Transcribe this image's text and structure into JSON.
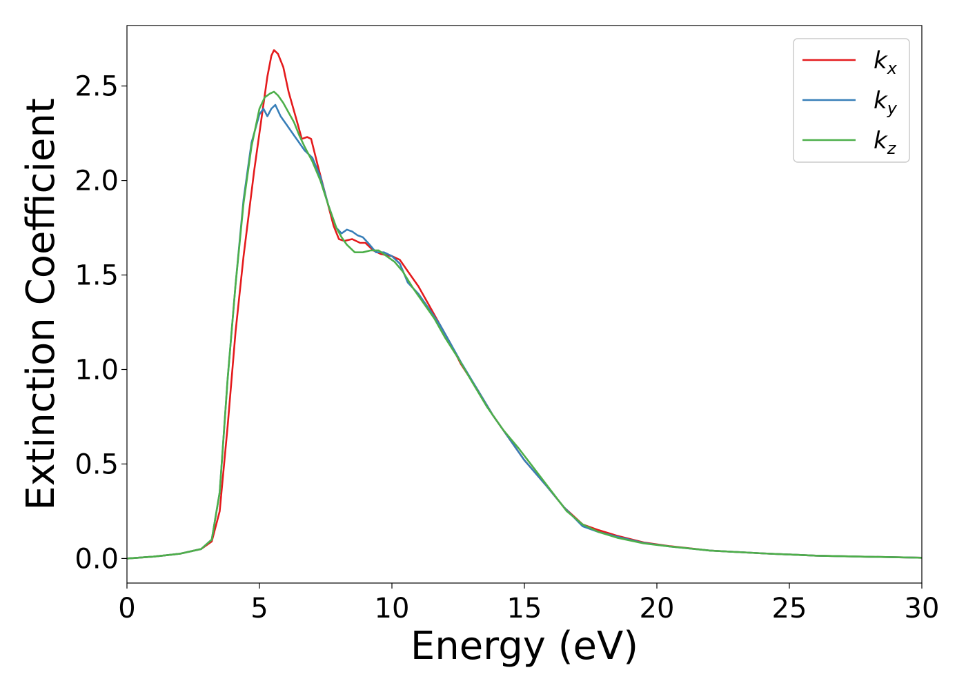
{
  "chart_data": {
    "type": "line",
    "title": "",
    "xlabel": "Energy (eV)",
    "ylabel": "Extinction Coefficient",
    "xlim": [
      0,
      30
    ],
    "ylim": [
      -0.13,
      2.82
    ],
    "xticks": [
      0,
      5,
      10,
      15,
      20,
      25,
      30
    ],
    "xtick_labels": [
      "0",
      "5",
      "10",
      "15",
      "20",
      "25",
      "30"
    ],
    "yticks": [
      0.0,
      0.5,
      1.0,
      1.5,
      2.0,
      2.5
    ],
    "ytick_labels": [
      "0.0",
      "0.5",
      "1.0",
      "1.5",
      "2.0",
      "2.5"
    ],
    "grid": false,
    "legend": {
      "position": "top-right"
    },
    "series": [
      {
        "name": "k_x",
        "label_main": "k",
        "label_sub": "x",
        "color": "#e41a1c",
        "points": [
          [
            0,
            0
          ],
          [
            1,
            0.01
          ],
          [
            2,
            0.025
          ],
          [
            2.8,
            0.05
          ],
          [
            3.2,
            0.09
          ],
          [
            3.5,
            0.25
          ],
          [
            3.8,
            0.7
          ],
          [
            4.1,
            1.2
          ],
          [
            4.4,
            1.6
          ],
          [
            4.8,
            2.05
          ],
          [
            5.1,
            2.35
          ],
          [
            5.3,
            2.55
          ],
          [
            5.45,
            2.66
          ],
          [
            5.55,
            2.69
          ],
          [
            5.7,
            2.67
          ],
          [
            5.9,
            2.6
          ],
          [
            6.1,
            2.47
          ],
          [
            6.4,
            2.32
          ],
          [
            6.6,
            2.22
          ],
          [
            6.8,
            2.23
          ],
          [
            6.95,
            2.22
          ],
          [
            7.2,
            2.08
          ],
          [
            7.5,
            1.92
          ],
          [
            7.8,
            1.76
          ],
          [
            8.0,
            1.69
          ],
          [
            8.2,
            1.68
          ],
          [
            8.5,
            1.69
          ],
          [
            8.8,
            1.67
          ],
          [
            9.0,
            1.67
          ],
          [
            9.3,
            1.63
          ],
          [
            9.6,
            1.61
          ],
          [
            10.0,
            1.6
          ],
          [
            10.3,
            1.58
          ],
          [
            10.6,
            1.52
          ],
          [
            11.0,
            1.44
          ],
          [
            11.4,
            1.34
          ],
          [
            11.8,
            1.24
          ],
          [
            12.2,
            1.14
          ],
          [
            12.6,
            1.03
          ],
          [
            13.2,
            0.9
          ],
          [
            13.8,
            0.76
          ],
          [
            14.5,
            0.62
          ],
          [
            15.0,
            0.52
          ],
          [
            15.8,
            0.39
          ],
          [
            16.5,
            0.27
          ],
          [
            17.2,
            0.18
          ],
          [
            17.8,
            0.15
          ],
          [
            18.5,
            0.12
          ],
          [
            19.5,
            0.085
          ],
          [
            20.5,
            0.065
          ],
          [
            22,
            0.042
          ],
          [
            24,
            0.027
          ],
          [
            26,
            0.015
          ],
          [
            28,
            0.009
          ],
          [
            30,
            0.004
          ]
        ]
      },
      {
        "name": "k_y",
        "label_main": "k",
        "label_sub": "y",
        "color": "#377eb8",
        "points": [
          [
            0,
            0
          ],
          [
            1,
            0.01
          ],
          [
            2,
            0.025
          ],
          [
            2.8,
            0.05
          ],
          [
            3.2,
            0.1
          ],
          [
            3.5,
            0.35
          ],
          [
            3.8,
            0.95
          ],
          [
            4.1,
            1.45
          ],
          [
            4.4,
            1.9
          ],
          [
            4.7,
            2.2
          ],
          [
            5.0,
            2.35
          ],
          [
            5.15,
            2.38
          ],
          [
            5.3,
            2.34
          ],
          [
            5.45,
            2.38
          ],
          [
            5.6,
            2.4
          ],
          [
            5.8,
            2.34
          ],
          [
            6.0,
            2.3
          ],
          [
            6.3,
            2.24
          ],
          [
            6.5,
            2.2
          ],
          [
            6.7,
            2.16
          ],
          [
            7.0,
            2.12
          ],
          [
            7.3,
            2.02
          ],
          [
            7.6,
            1.87
          ],
          [
            7.9,
            1.75
          ],
          [
            8.1,
            1.72
          ],
          [
            8.3,
            1.74
          ],
          [
            8.5,
            1.73
          ],
          [
            8.7,
            1.71
          ],
          [
            8.9,
            1.7
          ],
          [
            9.1,
            1.67
          ],
          [
            9.4,
            1.62
          ],
          [
            9.7,
            1.62
          ],
          [
            10.0,
            1.6
          ],
          [
            10.3,
            1.56
          ],
          [
            10.6,
            1.46
          ],
          [
            11.0,
            1.4
          ],
          [
            11.4,
            1.32
          ],
          [
            11.8,
            1.24
          ],
          [
            12.2,
            1.14
          ],
          [
            12.6,
            1.04
          ],
          [
            13.2,
            0.9
          ],
          [
            13.8,
            0.76
          ],
          [
            14.5,
            0.62
          ],
          [
            15.0,
            0.52
          ],
          [
            15.8,
            0.39
          ],
          [
            16.5,
            0.27
          ],
          [
            17.2,
            0.17
          ],
          [
            17.8,
            0.14
          ],
          [
            18.5,
            0.115
          ],
          [
            19.5,
            0.082
          ],
          [
            20.5,
            0.063
          ],
          [
            22,
            0.042
          ],
          [
            24,
            0.027
          ],
          [
            26,
            0.015
          ],
          [
            28,
            0.009
          ],
          [
            30,
            0.004
          ]
        ]
      },
      {
        "name": "k_z",
        "label_main": "k",
        "label_sub": "z",
        "color": "#4daf4a",
        "points": [
          [
            0,
            0
          ],
          [
            1,
            0.01
          ],
          [
            2,
            0.025
          ],
          [
            2.8,
            0.05
          ],
          [
            3.2,
            0.1
          ],
          [
            3.5,
            0.35
          ],
          [
            3.8,
            0.95
          ],
          [
            4.1,
            1.45
          ],
          [
            4.4,
            1.88
          ],
          [
            4.7,
            2.18
          ],
          [
            5.0,
            2.38
          ],
          [
            5.2,
            2.44
          ],
          [
            5.4,
            2.46
          ],
          [
            5.55,
            2.47
          ],
          [
            5.7,
            2.45
          ],
          [
            5.9,
            2.41
          ],
          [
            6.1,
            2.36
          ],
          [
            6.3,
            2.31
          ],
          [
            6.5,
            2.24
          ],
          [
            6.7,
            2.18
          ],
          [
            7.0,
            2.1
          ],
          [
            7.3,
            2.0
          ],
          [
            7.6,
            1.87
          ],
          [
            7.9,
            1.75
          ],
          [
            8.1,
            1.7
          ],
          [
            8.3,
            1.66
          ],
          [
            8.6,
            1.62
          ],
          [
            8.9,
            1.62
          ],
          [
            9.2,
            1.63
          ],
          [
            9.5,
            1.63
          ],
          [
            9.8,
            1.6
          ],
          [
            10.1,
            1.57
          ],
          [
            10.4,
            1.52
          ],
          [
            10.8,
            1.43
          ],
          [
            11.2,
            1.35
          ],
          [
            11.6,
            1.27
          ],
          [
            12.0,
            1.17
          ],
          [
            12.5,
            1.06
          ],
          [
            13.0,
            0.94
          ],
          [
            13.6,
            0.8
          ],
          [
            14.2,
            0.68
          ],
          [
            14.8,
            0.58
          ],
          [
            15.4,
            0.47
          ],
          [
            16.0,
            0.36
          ],
          [
            16.6,
            0.25
          ],
          [
            17.2,
            0.18
          ],
          [
            17.8,
            0.14
          ],
          [
            18.5,
            0.11
          ],
          [
            19.5,
            0.08
          ],
          [
            20.5,
            0.063
          ],
          [
            22,
            0.042
          ],
          [
            24,
            0.027
          ],
          [
            26,
            0.015
          ],
          [
            28,
            0.009
          ],
          [
            30,
            0.004
          ]
        ]
      }
    ]
  }
}
